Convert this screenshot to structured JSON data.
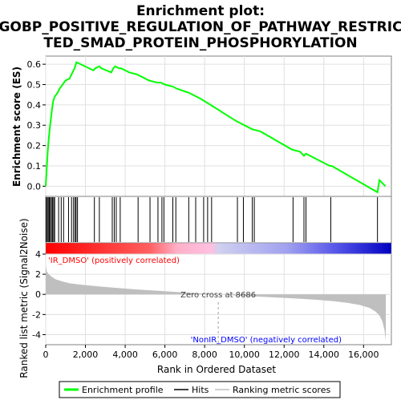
{
  "title_line1": "Enrichment plot:",
  "title_line2": "GOBP_POSITIVE_REGULATION_OF_PATHWAY_RESTRIC",
  "title_line3": "TED_SMAD_PROTEIN_PHOSPHORYLATION",
  "chart_data": {
    "type": "line",
    "es_ylabel": "Enrichment score (ES)",
    "metric_ylabel": "Ranked list metric (Signal2Noise)",
    "xlabel": "Rank in Ordered Dataset",
    "xlim": [
      0,
      17400
    ],
    "es_ylim": [
      -0.05,
      0.64
    ],
    "metric_ylim": [
      -5,
      4
    ],
    "x_ticks": [
      0,
      2000,
      4000,
      6000,
      8000,
      10000,
      12000,
      14000,
      16000
    ],
    "x_tick_labels": [
      "0",
      "2,000",
      "4,000",
      "6,000",
      "8,000",
      "10,000",
      "12,000",
      "14,000",
      "16,000"
    ],
    "es_ticks": [
      0.0,
      0.1,
      0.2,
      0.3,
      0.4,
      0.5,
      0.6
    ],
    "es_tick_labels": [
      "0.0",
      "0.1",
      "0.2",
      "0.3",
      "0.4",
      "0.5",
      "0.6"
    ],
    "metric_ticks": [
      4,
      2,
      0,
      -2,
      -4
    ],
    "metric_tick_labels": [
      "4",
      "2",
      "0",
      "-2",
      "-4"
    ],
    "enrichment_profile": {
      "x": [
        0,
        60,
        100,
        150,
        200,
        260,
        320,
        380,
        450,
        600,
        700,
        850,
        1000,
        1200,
        1300,
        1400,
        1450,
        1550,
        2400,
        2500,
        2700,
        2800,
        3300,
        3400,
        3500,
        3700,
        3800,
        4200,
        4600,
        5200,
        5600,
        5800,
        6000,
        6400,
        6600,
        7200,
        7800,
        8300,
        9600,
        10400,
        10800,
        12400,
        12800,
        13000,
        13100,
        14300,
        14400,
        16700,
        16800,
        17100
      ],
      "y": [
        0.0,
        0.1,
        0.17,
        0.23,
        0.28,
        0.33,
        0.38,
        0.42,
        0.44,
        0.46,
        0.48,
        0.5,
        0.52,
        0.53,
        0.55,
        0.57,
        0.58,
        0.61,
        0.57,
        0.58,
        0.59,
        0.58,
        0.56,
        0.58,
        0.59,
        0.58,
        0.58,
        0.56,
        0.55,
        0.52,
        0.51,
        0.51,
        0.5,
        0.49,
        0.48,
        0.46,
        0.43,
        0.4,
        0.32,
        0.28,
        0.27,
        0.18,
        0.17,
        0.15,
        0.16,
        0.1,
        0.1,
        -0.03,
        0.03,
        0.0
      ]
    },
    "hits": [
      30,
      80,
      130,
      180,
      230,
      290,
      340,
      400,
      450,
      650,
      780,
      900,
      1150,
      1300,
      1400,
      1480,
      1530,
      1600,
      2450,
      2700,
      3350,
      3450,
      3550,
      3750,
      4650,
      5250,
      5650,
      5850,
      5950,
      6400,
      6550,
      7200,
      7550,
      7950,
      8150,
      8350,
      9650,
      9950,
      10400,
      10500,
      12450,
      13000,
      13100,
      14350,
      16700
    ],
    "metric_curve": {
      "x": [
        0,
        50,
        150,
        300,
        500,
        800,
        1200,
        1800,
        2500,
        3500,
        4500,
        5500,
        6500,
        7500,
        8686,
        9500,
        10500,
        11500,
        12500,
        13500,
        14500,
        15200,
        15800,
        16300,
        16600,
        16800,
        16950,
        17050,
        17120
      ],
      "y": [
        2.9,
        2.3,
        2.0,
        1.75,
        1.5,
        1.3,
        1.1,
        0.95,
        0.82,
        0.65,
        0.5,
        0.38,
        0.25,
        0.12,
        0.0,
        -0.1,
        -0.2,
        -0.3,
        -0.4,
        -0.52,
        -0.68,
        -0.85,
        -1.05,
        -1.35,
        -1.7,
        -2.1,
        -2.7,
        -3.5,
        -4.6
      ]
    },
    "zero_cross_rank": 8686,
    "zero_cross_label": "Zero cross at 8686",
    "pos_label": "'IR_DMSO' (positively correlated)",
    "neg_label": "'NonIR_DMSO' (negatively correlated)",
    "legend": [
      {
        "label": "Enrichment profile",
        "color": "#00ff00"
      },
      {
        "label": "Hits",
        "color": "#000000"
      },
      {
        "label": "Ranking metric scores",
        "color": "#c0c0c0"
      }
    ],
    "colors": {
      "profile": "#00ff00",
      "metric_fill": "#bfbfbf",
      "pos_label": "#ff0000",
      "neg_label": "#0000ff",
      "gradient_stops": [
        "#ff0000",
        "#ff6060",
        "#ffb0c8",
        "#ffc0e0",
        "#d0d0f0",
        "#a0a0f0",
        "#5050e8",
        "#0000c0"
      ]
    }
  }
}
